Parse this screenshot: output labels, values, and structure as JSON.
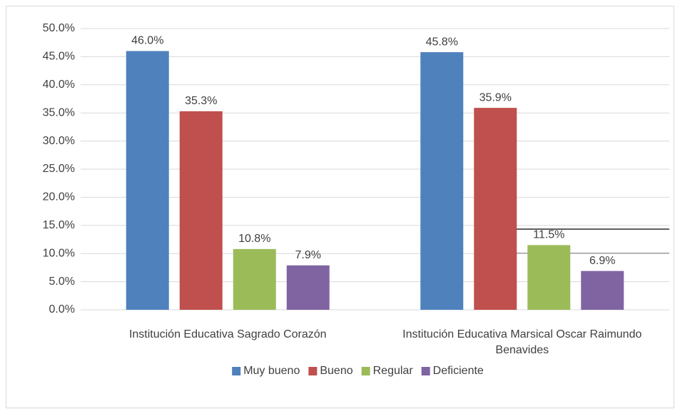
{
  "chart_data": {
    "type": "bar",
    "categories": [
      "Institución Educativa Sagrado Corazón",
      "Institución Educativa Marsical Oscar Raimundo Benavides"
    ],
    "series": [
      {
        "name": "Muy bueno",
        "color": "#4f81bd",
        "values": [
          46.0,
          45.8
        ],
        "value_labels": [
          "46.0%",
          "45.8%"
        ]
      },
      {
        "name": "Bueno",
        "color": "#c0504d",
        "values": [
          35.3,
          35.9
        ],
        "value_labels": [
          "35.3%",
          "35.9%"
        ]
      },
      {
        "name": "Regular",
        "color": "#9bbb59",
        "values": [
          10.8,
          11.5
        ],
        "value_labels": [
          "10.8%",
          "11.5%"
        ]
      },
      {
        "name": "Deficiente",
        "color": "#8064a2",
        "values": [
          7.9,
          6.9
        ],
        "value_labels": [
          "7.9%",
          "6.9%"
        ]
      }
    ],
    "ylim": [
      0,
      50
    ],
    "yticks": [
      {
        "value": 0,
        "label": "0.0%"
      },
      {
        "value": 5,
        "label": "5.0%"
      },
      {
        "value": 10,
        "label": "10.0%"
      },
      {
        "value": 15,
        "label": "15.0%"
      },
      {
        "value": 20,
        "label": "20.0%"
      },
      {
        "value": 25,
        "label": "25.0%"
      },
      {
        "value": 30,
        "label": "30.0%"
      },
      {
        "value": 35,
        "label": "35.0%"
      },
      {
        "value": 40,
        "label": "40.0%"
      },
      {
        "value": 45,
        "label": "45.0%"
      },
      {
        "value": 50,
        "label": "50.0%"
      }
    ],
    "grid": true,
    "legend": "bottom"
  }
}
